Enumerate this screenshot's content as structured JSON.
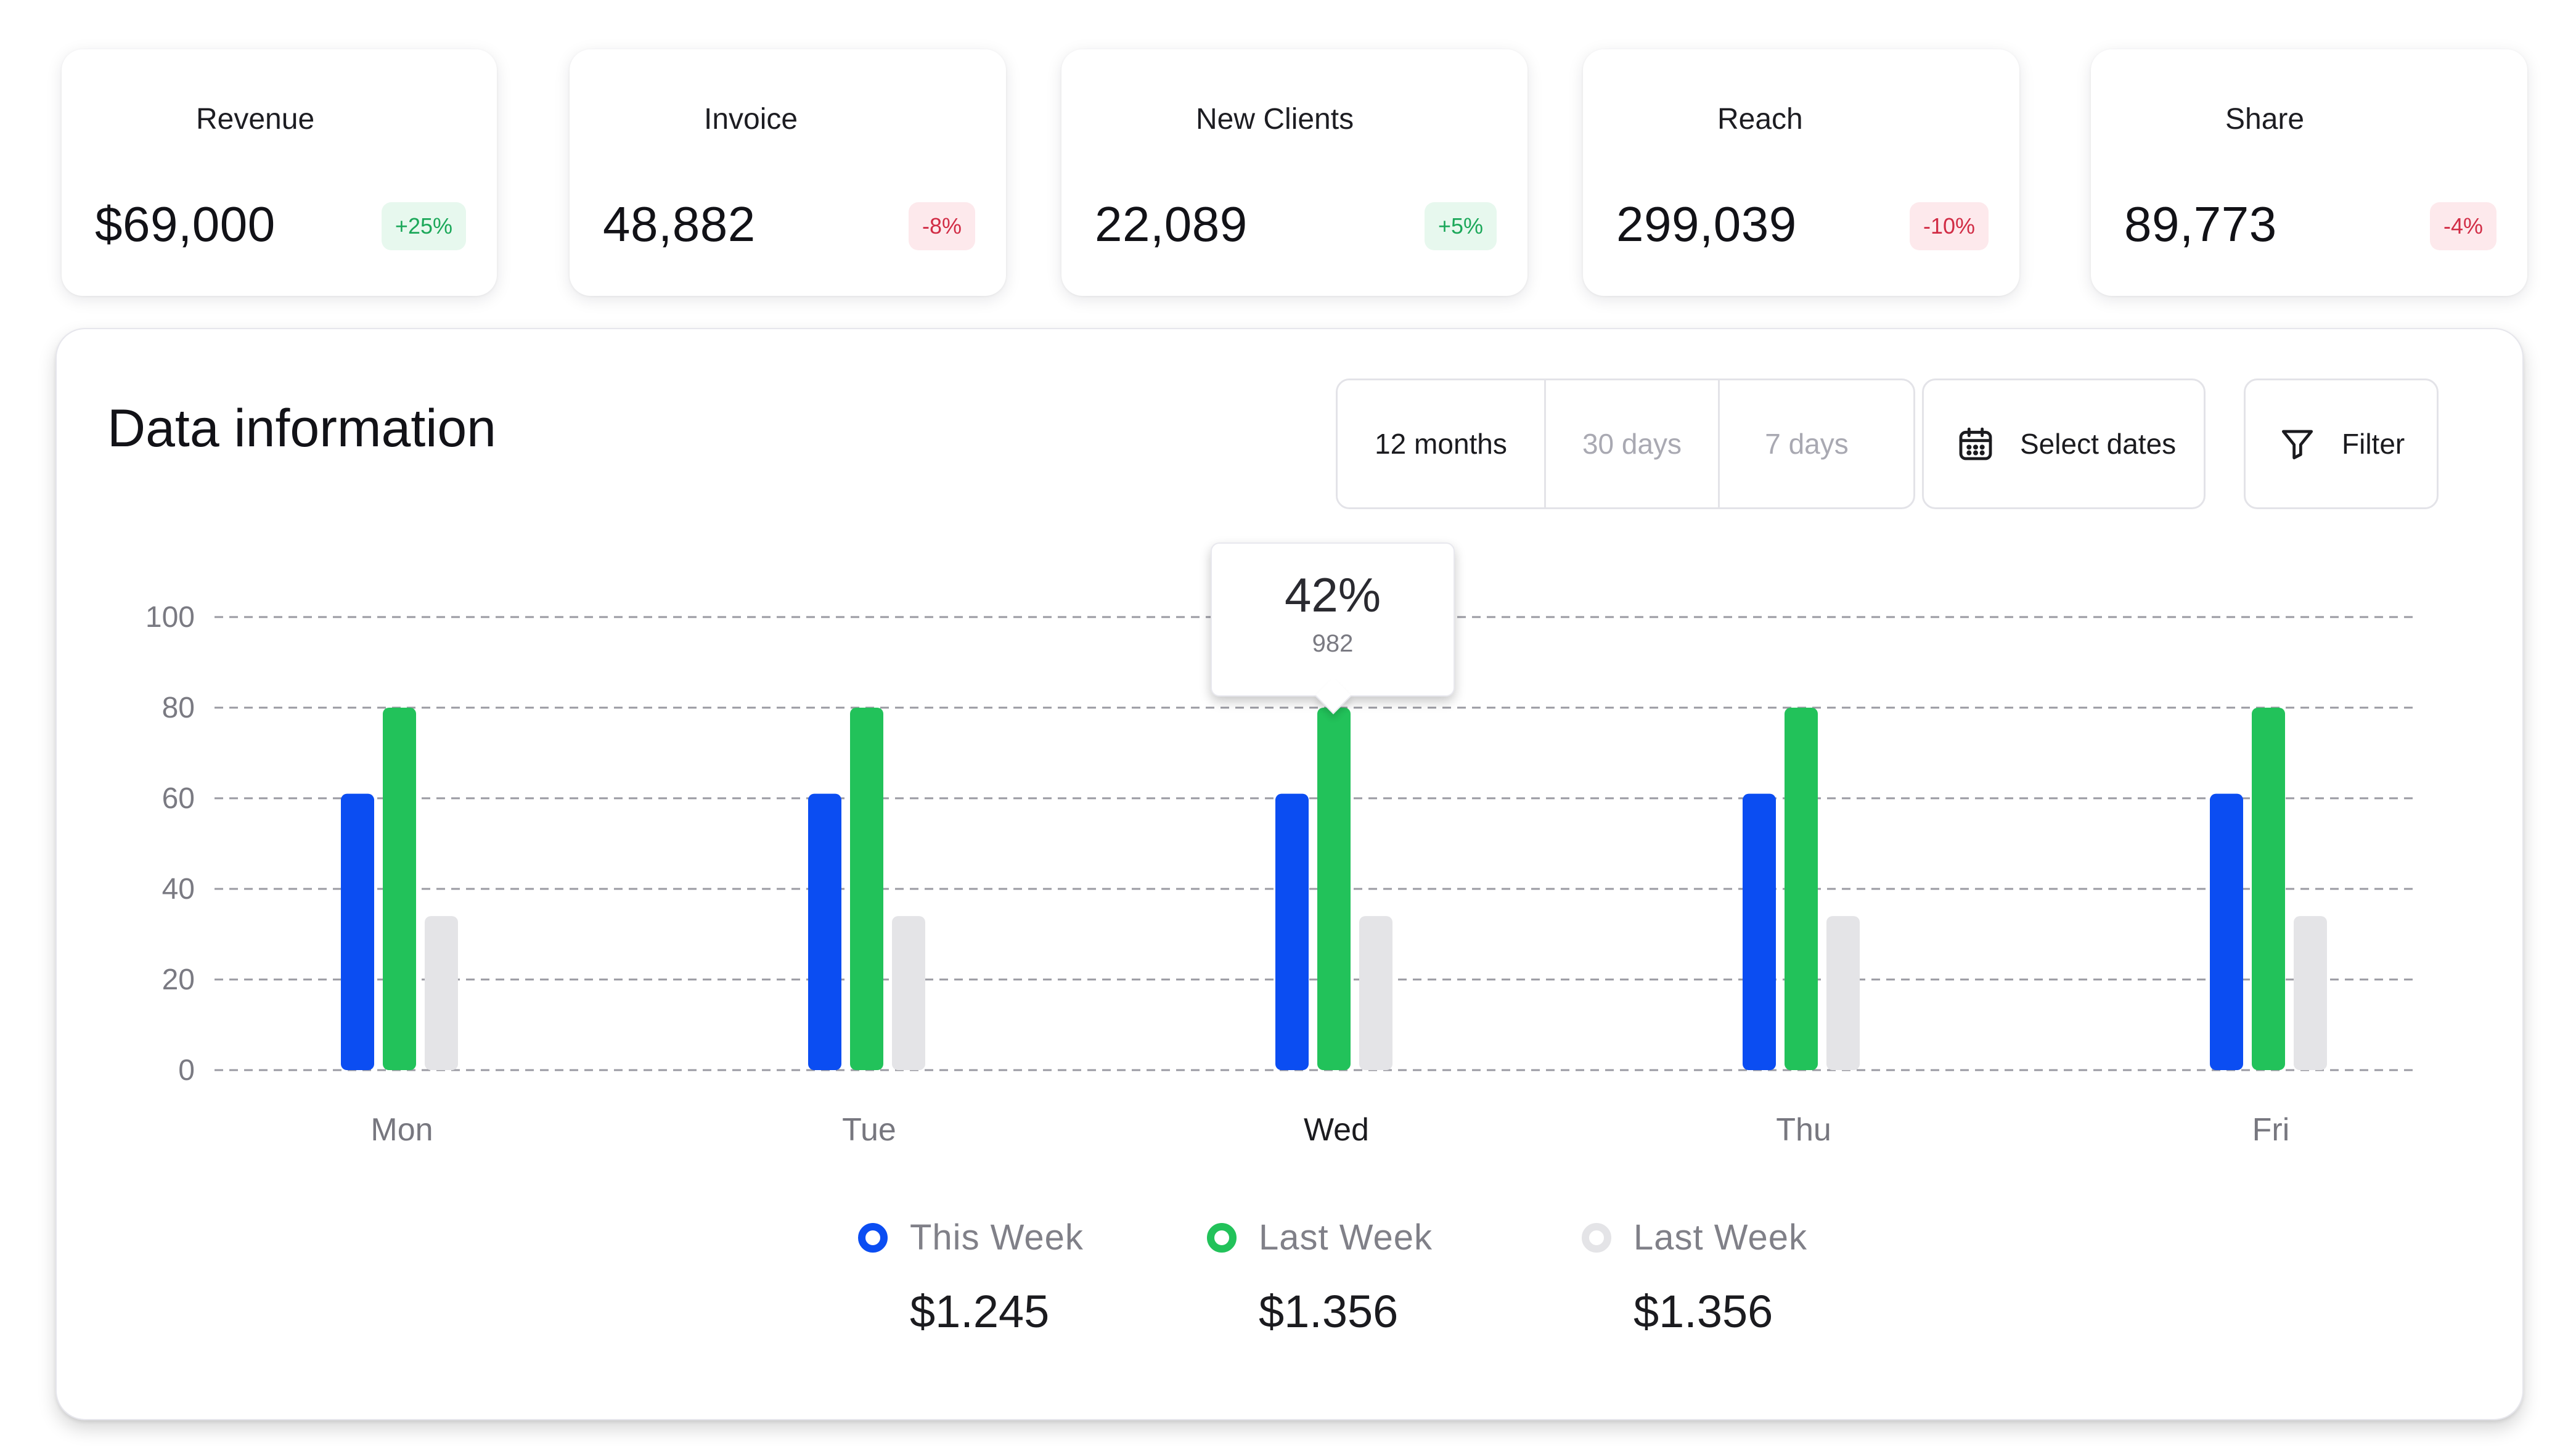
{
  "cards": [
    {
      "label": "Revenue",
      "value": "$69,000",
      "delta": "+25%",
      "trend": "up",
      "icon": "credit-card-icon",
      "color": "#36c47f"
    },
    {
      "label": "Invoice",
      "value": "48,882",
      "delta": "-8%",
      "trend": "down",
      "icon": "invoice-icon",
      "color": "#8a1fe3"
    },
    {
      "label": "New Clients",
      "value": "22,089",
      "delta": "+5%",
      "trend": "up",
      "icon": "users-icon",
      "color": "#f7be26"
    },
    {
      "label": "Reach",
      "value": "299,039",
      "delta": "-10%",
      "trend": "down",
      "icon": "play-circle-icon",
      "color": "#4f96f4"
    },
    {
      "label": "Share",
      "value": "89,773",
      "delta": "-4%",
      "trend": "down",
      "icon": "share-network-icon",
      "color": "#6a5cf0"
    }
  ],
  "panel": {
    "title": "Data information",
    "ranges": [
      {
        "label": "12 months",
        "active": true
      },
      {
        "label": "30 days",
        "active": false
      },
      {
        "label": "7 days",
        "active": false
      }
    ],
    "select_dates_label": "Select dates",
    "filter_label": "Filter"
  },
  "tooltip": {
    "value": "42%",
    "sub": "982",
    "category": "Wed"
  },
  "legend": [
    {
      "label": "This Week",
      "value": "$1.245",
      "color": "#0b4df2"
    },
    {
      "label": "Last Week",
      "value": "$1.356",
      "color": "#22c25a"
    },
    {
      "label": "Last Week",
      "value": "$1.356",
      "color": "#e4e4e7"
    }
  ],
  "colors": {
    "positive_badge_text": "#1ca85a",
    "negative_badge_text": "#d12c45",
    "bar_blue": "#0b4df2",
    "bar_green": "#22c25a",
    "bar_grey": "#e4e4e7"
  },
  "chart_data": {
    "type": "bar",
    "categories": [
      "Mon",
      "Tue",
      "Wed",
      "Thu",
      "Fri"
    ],
    "active_category": "Wed",
    "series": [
      {
        "name": "This Week",
        "color": "#0b4df2",
        "values": [
          61,
          61,
          61,
          61,
          61
        ]
      },
      {
        "name": "Last Week",
        "color": "#22c25a",
        "values": [
          80,
          80,
          80,
          80,
          80
        ]
      },
      {
        "name": "Last Week",
        "color": "#e4e4e7",
        "values": [
          34,
          34,
          34,
          34,
          34
        ]
      }
    ],
    "yticks": [
      0,
      20,
      40,
      60,
      80,
      100
    ],
    "ylim": [
      0,
      105
    ],
    "grid": true,
    "title": "",
    "xlabel": "",
    "ylabel": ""
  }
}
